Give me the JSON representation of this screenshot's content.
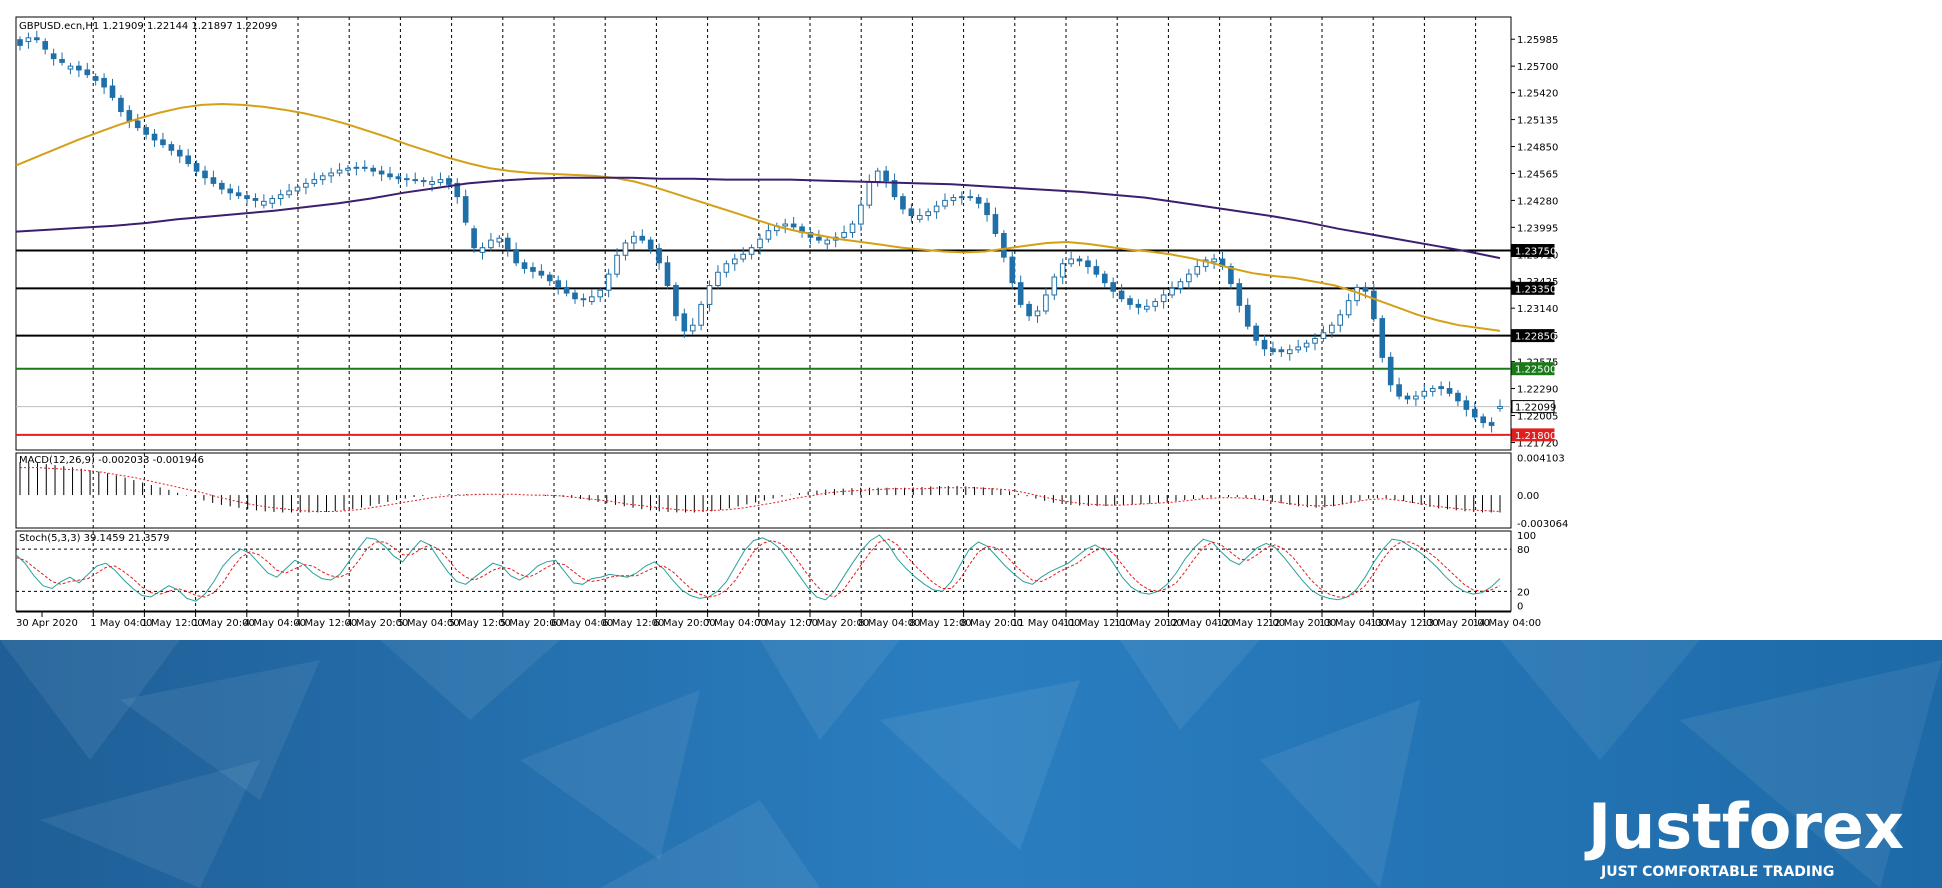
{
  "chart_data": {
    "type": "candlestick",
    "title": "GBPUSD.ecn,H1  1.21909 1.22144 1.21897 1.22099",
    "symbol": "GBPUSD.ecn",
    "timeframe": "H1",
    "ohlc_readout": [
      "1.21909",
      "1.22144",
      "1.21897",
      "1.22099"
    ],
    "x_ticks": [
      "30 Apr 2020",
      "1 May 04:00",
      "1 May 12:00",
      "1 May 20:00",
      "4 May 04:00",
      "4 May 12:00",
      "4 May 20:00",
      "5 May 04:00",
      "5 May 12:00",
      "5 May 20:00",
      "6 May 04:00",
      "6 May 12:00",
      "6 May 20:00",
      "7 May 04:00",
      "7 May 12:00",
      "7 May 20:00",
      "8 May 04:00",
      "8 May 12:00",
      "8 May 20:00",
      "11 May 04:00",
      "11 May 12:00",
      "11 May 20:00",
      "12 May 04:00",
      "12 May 12:00",
      "12 May 20:00",
      "13 May 04:00",
      "13 May 12:00",
      "13 May 20:00",
      "14 May 04:00"
    ],
    "y_ticks": [
      "1.25985",
      "1.25700",
      "1.25420",
      "1.25135",
      "1.24850",
      "1.24565",
      "1.24280",
      "1.23995",
      "1.23710",
      "1.23425",
      "1.23140",
      "1.22855",
      "1.22575",
      "1.22290",
      "1.22005",
      "1.21720"
    ],
    "ylim": [
      1.2164,
      1.2622
    ],
    "horizontal_levels": [
      {
        "label": "1.23750",
        "value": 1.2375,
        "color": "#000000"
      },
      {
        "label": "1.23350",
        "value": 1.2335,
        "color": "#000000"
      },
      {
        "label": "1.22850",
        "value": 1.2285,
        "color": "#000000"
      },
      {
        "label": "1.22500",
        "value": 1.225,
        "color": "#1a7a1a"
      },
      {
        "label": "1.22099",
        "value": 1.22099,
        "color": "#bdbdbd"
      },
      {
        "label": "1.21800",
        "value": 1.218,
        "color": "#e02020"
      }
    ],
    "close": [
      1.2592,
      1.26,
      1.2598,
      1.2588,
      1.2578,
      1.2574,
      1.257,
      1.2566,
      1.2561,
      1.2555,
      1.2548,
      1.2537,
      1.2522,
      1.2512,
      1.2505,
      1.2498,
      1.2492,
      1.2487,
      1.2481,
      1.2475,
      1.2467,
      1.2459,
      1.2452,
      1.2446,
      1.244,
      1.2436,
      1.2433,
      1.243,
      1.2428,
      1.2427,
      1.243,
      1.2434,
      1.2438,
      1.2442,
      1.2446,
      1.245,
      1.2454,
      1.2457,
      1.246,
      1.2462,
      1.2463,
      1.2462,
      1.2459,
      1.2456,
      1.2453,
      1.2451,
      1.245,
      1.2449,
      1.2448,
      1.2448,
      1.245,
      1.2445,
      1.2432,
      1.2405,
      1.2378,
      1.2378,
      1.2386,
      1.2388,
      1.2376,
      1.2362,
      1.2356,
      1.2353,
      1.2349,
      1.2343,
      1.2336,
      1.233,
      1.2324,
      1.2323,
      1.2326,
      1.2333,
      1.235,
      1.237,
      1.2383,
      1.239,
      1.2386,
      1.2377,
      1.2362,
      1.2338,
      1.2306,
      1.229,
      1.2296,
      1.2318,
      1.2338,
      1.2352,
      1.2361,
      1.2366,
      1.2371,
      1.2378,
      1.2387,
      1.2396,
      1.2401,
      1.2403,
      1.24,
      1.2394,
      1.2389,
      1.2386,
      1.2386,
      1.2389,
      1.2394,
      1.2403,
      1.2423,
      1.2448,
      1.2459,
      1.2449,
      1.2432,
      1.2419,
      1.2412,
      1.2412,
      1.2416,
      1.2422,
      1.2428,
      1.2431,
      1.2432,
      1.2431,
      1.2425,
      1.2413,
      1.2393,
      1.2368,
      1.2341,
      1.2318,
      1.2306,
      1.2311,
      1.2328,
      1.2347,
      1.2361,
      1.2366,
      1.2364,
      1.2358,
      1.235,
      1.2341,
      1.2332,
      1.2324,
      1.2318,
      1.2315,
      1.2316,
      1.2321,
      1.2328,
      1.2335,
      1.2342,
      1.235,
      1.2358,
      1.2365,
      1.2366,
      1.2358,
      1.234,
      1.2317,
      1.2295,
      1.228,
      1.2271,
      1.2268,
      1.2268,
      1.227,
      1.2273,
      1.2277,
      1.2282,
      1.2288,
      1.2296,
      1.2307,
      1.2322,
      1.2336,
      1.2332,
      1.2303,
      1.2262,
      1.2233,
      1.2221,
      1.2218,
      1.2221,
      1.2226,
      1.2229,
      1.2229,
      1.2224,
      1.2216,
      1.2207,
      1.2199,
      1.2193,
      1.219,
      1.221
    ],
    "open_offset": [
      0.0006,
      -0.0004,
      0.0002,
      0.0008,
      0.0005,
      0.0003,
      -0.0003,
      0.0004,
      0.0005,
      0.0004,
      0.0009,
      0.0012,
      0.0014,
      0.0011,
      0.0007,
      0.0007,
      0.0006,
      0.0005,
      0.0006,
      0.0006,
      0.0008,
      0.0008,
      0.0007,
      0.0006,
      0.0006,
      0.0004,
      0.0003,
      0.0003,
      0.0002,
      -0.0004,
      -0.0005,
      -0.0004,
      -0.0004,
      -0.0004,
      -0.0004,
      -0.0004,
      -0.0004,
      -0.0003,
      -0.0003,
      -0.0002,
      -0.0001,
      0.0001,
      0.0003,
      0.0003,
      0.0003,
      0.0002,
      0.0001,
      0.0001,
      0.0001,
      -0.0003,
      -0.0003,
      0.0006,
      0.0014,
      0.0027,
      0.002,
      -0.0005,
      -0.0008,
      -0.0004,
      0.0012,
      0.0014,
      0.0006,
      0.0004,
      0.0004,
      0.0006,
      0.0007,
      0.0006,
      0.0006,
      0.0001,
      -0.0005,
      -0.0007,
      -0.0017,
      -0.002,
      -0.0013,
      -0.0007,
      0.0004,
      0.0009,
      0.0015,
      0.0024,
      0.0032,
      0.0018,
      -0.0006,
      -0.0022,
      -0.002,
      -0.0014,
      -0.0009,
      -0.0005,
      -0.0005,
      -0.0007,
      -0.0009,
      -0.0009,
      -0.0005,
      -0.0002,
      0.0003,
      0.0006,
      0.0005,
      0.0003,
      -0.0004,
      -0.0003,
      -0.0005,
      -0.0009,
      -0.002,
      -0.0025,
      -0.0011,
      0.001,
      0.0017,
      0.0013,
      0.0007,
      -0.0004,
      -0.0004,
      -0.0006,
      -0.0006,
      -0.0003,
      -0.0001,
      0.0001,
      0.0006,
      0.0012,
      0.002,
      0.0025,
      0.0027,
      0.0023,
      0.0012,
      -0.0005,
      -0.0017,
      -0.0019,
      -0.0014,
      -0.0005,
      0.0002,
      0.0006,
      0.0008,
      0.0009,
      0.0009,
      0.0008,
      0.0006,
      0.0003,
      -0.0003,
      -0.0005,
      -0.0007,
      -0.0007,
      -0.0007,
      -0.0008,
      -0.0008,
      -0.0007,
      -0.0003,
      0.0008,
      0.0018,
      0.0023,
      0.0022,
      0.0015,
      0.0009,
      0.0003,
      0.0002,
      -0.0004,
      -0.0003,
      -0.0004,
      -0.0005,
      -0.0006,
      -0.0008,
      -0.0011,
      -0.0015,
      -0.0014,
      0.0004,
      0.0029,
      0.0041,
      0.0029,
      0.0012,
      0.0003,
      -0.0003,
      -0.0005,
      -0.0003,
      0.0002,
      0.0005,
      0.0008,
      0.0009,
      0.0008,
      0.0006,
      0.0003,
      -0.0002
    ],
    "ma_fast": [
      1.2465,
      1.2474,
      1.2483,
      1.2492,
      1.25,
      1.2508,
      1.2515,
      1.2521,
      1.2526,
      1.2529,
      1.253,
      1.2529,
      1.2527,
      1.2524,
      1.252,
      1.2515,
      1.2509,
      1.2502,
      1.2495,
      1.2487,
      1.248,
      1.2473,
      1.2467,
      1.2462,
      1.2459,
      1.2457,
      1.2456,
      1.2455,
      1.2454,
      1.2452,
      1.2448,
      1.2442,
      1.2435,
      1.2428,
      1.2421,
      1.2414,
      1.2407,
      1.24,
      1.2395,
      1.2391,
      1.2387,
      1.2384,
      1.2381,
      1.2378,
      1.2376,
      1.2374,
      1.2373,
      1.2374,
      1.2377,
      1.238,
      1.2383,
      1.2384,
      1.2382,
      1.2379,
      1.2376,
      1.2374,
      1.2371,
      1.2367,
      1.2362,
      1.2356,
      1.2351,
      1.2348,
      1.2346,
      1.2342,
      1.2338,
      1.2331,
      1.2323,
      1.2315,
      1.2307,
      1.2301,
      1.2296,
      1.2293,
      1.229
    ],
    "ma_slow": [
      1.2395,
      1.2397,
      1.2399,
      1.2401,
      1.2404,
      1.2408,
      1.2411,
      1.2414,
      1.2417,
      1.2421,
      1.2425,
      1.243,
      1.2436,
      1.2441,
      1.2446,
      1.2449,
      1.2451,
      1.2452,
      1.2452,
      1.2452,
      1.2451,
      1.2451,
      1.245,
      1.245,
      1.245,
      1.2449,
      1.2448,
      1.2447,
      1.2446,
      1.2445,
      1.2443,
      1.2441,
      1.2439,
      1.2437,
      1.2434,
      1.2431,
      1.2426,
      1.2421,
      1.2416,
      1.2411,
      1.2405,
      1.2398,
      1.2392,
      1.2386,
      1.238,
      1.2374,
      1.2367
    ],
    "macd_title": "MACD(12,26,9) -0.002033 -0.001946",
    "macd_ticks": [
      "0.004103",
      "0.00",
      "-0.003064"
    ],
    "macd_ylim": [
      -0.0036,
      0.0046
    ],
    "macd_hist": [
      0.0036,
      0.0035,
      0.0033,
      0.0031,
      0.0028,
      0.0025,
      0.0021,
      0.0016,
      0.0011,
      0.0006,
      0.0,
      -0.0005,
      -0.001,
      -0.0013,
      -0.0016,
      -0.0018,
      -0.0019,
      -0.0019,
      -0.0019,
      -0.0018,
      -0.0016,
      -0.0013,
      -0.0009,
      -0.0005,
      -0.0002,
      0.0,
      0.0001,
      0.0001,
      0.0001,
      0.0,
      0.0,
      0.0,
      -0.0001,
      -0.0002,
      -0.0004,
      -0.0007,
      -0.001,
      -0.0013,
      -0.0016,
      -0.0018,
      -0.0019,
      -0.0019,
      -0.0018,
      -0.0015,
      -0.0011,
      -0.0007,
      -0.0003,
      0.0001,
      0.0004,
      0.0006,
      0.0007,
      0.0008,
      0.0008,
      0.0008,
      0.0008,
      0.0009,
      0.001,
      0.001,
      0.0009,
      0.0008,
      0.0005,
      0.0,
      -0.0005,
      -0.0009,
      -0.0011,
      -0.0012,
      -0.0012,
      -0.0011,
      -0.001,
      -0.0009,
      -0.0007,
      -0.0005,
      -0.0003,
      -0.0002,
      -0.0002,
      -0.0004,
      -0.0007,
      -0.001,
      -0.0013,
      -0.0014,
      -0.0012,
      -0.0008,
      -0.0004,
      -0.0003,
      -0.0006,
      -0.001,
      -0.0014,
      -0.0016,
      -0.0018,
      -0.0019,
      -0.0019
    ],
    "macd_signal": [
      0.003,
      0.003,
      0.0029,
      0.0028,
      0.0027,
      0.0025,
      0.0022,
      0.0019,
      0.0015,
      0.0011,
      0.0007,
      0.0003,
      -0.0002,
      -0.0006,
      -0.001,
      -0.0013,
      -0.0015,
      -0.0017,
      -0.0018,
      -0.0018,
      -0.0017,
      -0.0015,
      -0.0012,
      -0.0009,
      -0.0006,
      -0.0003,
      -0.0001,
      0.0,
      0.0001,
      0.0001,
      0.0001,
      0.0,
      0.0,
      -0.0001,
      -0.0003,
      -0.0005,
      -0.0007,
      -0.001,
      -0.0012,
      -0.0014,
      -0.0016,
      -0.0017,
      -0.0017,
      -0.0016,
      -0.0014,
      -0.0011,
      -0.0008,
      -0.0004,
      -0.0001,
      0.0002,
      0.0004,
      0.0005,
      0.0006,
      0.0007,
      0.0007,
      0.0007,
      0.0008,
      0.0008,
      0.0008,
      0.0007,
      0.0006,
      0.0003,
      -0.0001,
      -0.0005,
      -0.0008,
      -0.001,
      -0.0011,
      -0.0011,
      -0.001,
      -0.0009,
      -0.0008,
      -0.0006,
      -0.0004,
      -0.0003,
      -0.0003,
      -0.0004,
      -0.0006,
      -0.0009,
      -0.0011,
      -0.0012,
      -0.0011,
      -0.0008,
      -0.0005,
      -0.0004,
      -0.0006,
      -0.0009,
      -0.0012,
      -0.0014,
      -0.0016,
      -0.0017,
      -0.0018
    ],
    "stoch_title": "Stoch(5,3,3) 39.1459 21.3579",
    "stoch_ticks": [
      "100",
      "80",
      "20",
      "0"
    ],
    "stoch_ylim": [
      0,
      100
    ],
    "stoch_main": [
      72,
      60,
      42,
      28,
      24,
      34,
      40,
      32,
      44,
      56,
      60,
      50,
      36,
      24,
      14,
      12,
      20,
      28,
      22,
      10,
      6,
      16,
      34,
      56,
      70,
      80,
      74,
      60,
      46,
      40,
      52,
      64,
      58,
      46,
      38,
      36,
      44,
      62,
      80,
      96,
      94,
      84,
      70,
      62,
      78,
      92,
      86,
      66,
      48,
      34,
      30,
      40,
      50,
      60,
      56,
      42,
      36,
      44,
      56,
      62,
      64,
      48,
      32,
      30,
      38,
      40,
      44,
      42,
      40,
      46,
      56,
      62,
      52,
      36,
      22,
      14,
      10,
      12,
      20,
      34,
      56,
      78,
      92,
      96,
      90,
      80,
      62,
      44,
      26,
      12,
      8,
      20,
      40,
      60,
      78,
      92,
      100,
      86,
      66,
      52,
      40,
      30,
      22,
      20,
      34,
      58,
      80,
      90,
      84,
      70,
      56,
      44,
      34,
      30,
      40,
      48,
      54,
      60,
      70,
      80,
      86,
      78,
      60,
      40,
      26,
      18,
      16,
      20,
      30,
      46,
      66,
      82,
      94,
      90,
      76,
      64,
      58,
      70,
      82,
      88,
      82,
      68,
      52,
      36,
      22,
      14,
      10,
      8,
      12,
      22,
      40,
      62,
      80,
      94,
      92,
      84,
      76,
      66,
      54,
      40,
      28,
      20,
      16,
      18,
      26,
      38
    ],
    "stoch_signal": [
      68,
      64,
      54,
      44,
      34,
      30,
      34,
      36,
      38,
      46,
      54,
      56,
      48,
      38,
      26,
      18,
      16,
      20,
      24,
      20,
      14,
      12,
      18,
      32,
      52,
      68,
      76,
      72,
      62,
      50,
      46,
      52,
      58,
      56,
      48,
      42,
      40,
      46,
      62,
      80,
      90,
      90,
      82,
      72,
      72,
      80,
      86,
      80,
      66,
      50,
      40,
      36,
      42,
      50,
      54,
      52,
      44,
      40,
      46,
      54,
      60,
      58,
      48,
      38,
      34,
      36,
      40,
      42,
      42,
      42,
      48,
      54,
      56,
      48,
      36,
      24,
      16,
      12,
      14,
      22,
      36,
      56,
      76,
      88,
      92,
      88,
      78,
      62,
      44,
      28,
      16,
      12,
      22,
      40,
      58,
      76,
      90,
      94,
      86,
      70,
      56,
      44,
      32,
      24,
      24,
      38,
      58,
      76,
      84,
      82,
      72,
      58,
      46,
      36,
      34,
      40,
      48,
      54,
      60,
      70,
      78,
      82,
      74,
      58,
      42,
      30,
      22,
      20,
      24,
      32,
      48,
      66,
      82,
      90,
      86,
      76,
      66,
      64,
      72,
      82,
      86,
      80,
      68,
      52,
      36,
      24,
      16,
      12,
      12,
      18,
      28,
      46,
      66,
      82,
      90,
      90,
      84,
      76,
      66,
      54,
      42,
      30,
      22,
      20,
      22,
      28
    ]
  },
  "brand": {
    "name": "Justforex",
    "tagline": "JUST COMFORTABLE TRADING"
  }
}
